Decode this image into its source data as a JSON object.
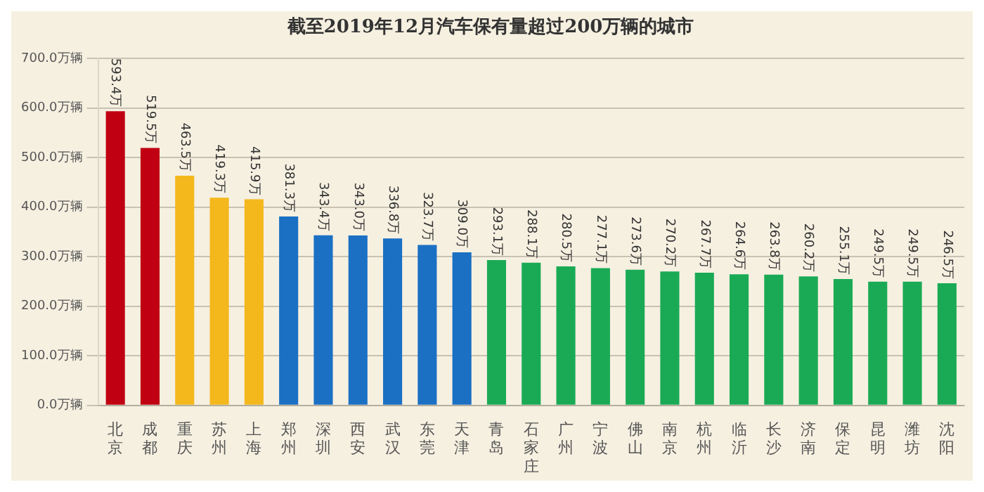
{
  "chart_data": {
    "type": "bar",
    "title": "截至2019年12月汽车保有量超过200万辆的城市",
    "categories": [
      "北京",
      "成都",
      "重庆",
      "苏州",
      "上海",
      "郑州",
      "深圳",
      "西安",
      "武汉",
      "东莞",
      "天津",
      "青岛",
      "石家庄",
      "广州",
      "宁波",
      "佛山",
      "南京",
      "杭州",
      "临沂",
      "长沙",
      "济南",
      "保定",
      "昆明",
      "潍坊",
      "沈阳"
    ],
    "values": [
      593.4,
      519.5,
      463.5,
      419.3,
      415.9,
      381.3,
      343.4,
      343.0,
      336.8,
      323.7,
      309.0,
      293.1,
      288.1,
      280.5,
      277.1,
      273.6,
      270.2,
      267.7,
      264.6,
      263.8,
      260.2,
      255.1,
      249.5,
      249.5,
      246.5
    ],
    "value_labels": [
      "593.4万",
      "519.5万",
      "463.5万",
      "419.3万",
      "415.9万",
      "381.3万",
      "343.4万",
      "343.0万",
      "336.8万",
      "323.7万",
      "309.0万",
      "293.1万",
      "288.1万",
      "280.5万",
      "277.1万",
      "273.6万",
      "270.2万",
      "267.7万",
      "264.6万",
      "263.8万",
      "260.2万",
      "255.1万",
      "249.5万",
      "249.5万",
      "246.5万"
    ],
    "colors": [
      "#c00012",
      "#c00012",
      "#f4b81c",
      "#f4b81c",
      "#f4b81c",
      "#1b70c4",
      "#1b70c4",
      "#1b70c4",
      "#1b70c4",
      "#1b70c4",
      "#1b70c4",
      "#1aaa55",
      "#1aaa55",
      "#1aaa55",
      "#1aaa55",
      "#1aaa55",
      "#1aaa55",
      "#1aaa55",
      "#1aaa55",
      "#1aaa55",
      "#1aaa55",
      "#1aaa55",
      "#1aaa55",
      "#1aaa55",
      "#1aaa55"
    ],
    "ylim": [
      0,
      700
    ],
    "yticks": [
      {
        "value": 0,
        "label": "0.0万辆"
      },
      {
        "value": 100,
        "label": "100.0万辆"
      },
      {
        "value": 200,
        "label": "200.0万辆"
      },
      {
        "value": 300,
        "label": "300.0万辆"
      },
      {
        "value": 400,
        "label": "400.0万辆"
      },
      {
        "value": 500,
        "label": "500.0万辆"
      },
      {
        "value": 600,
        "label": "600.0万辆"
      },
      {
        "value": 700,
        "label": "700.0万辆"
      }
    ],
    "grid": "y",
    "legend": false
  }
}
